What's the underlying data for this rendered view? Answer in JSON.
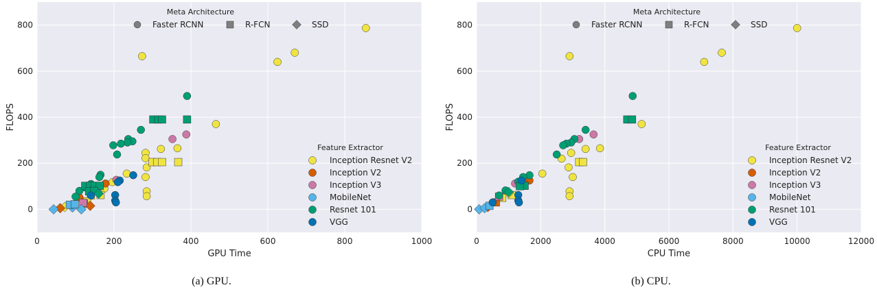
{
  "colors": {
    "Inception Resnet V2": "#f0e442",
    "Inception V2": "#d55e00",
    "Inception V3": "#cc79a7",
    "MobileNet": "#56b4e9",
    "Resnet 101": "#009e73",
    "VGG": "#0072b2",
    "meta_legend_marker": "#7f7f7f",
    "plot_bg": "#eaeaf2",
    "grid": "#ffffff"
  },
  "legend": {
    "meta_title": "Meta Architecture",
    "meta_items": [
      {
        "label": "Faster RCNN",
        "marker": "circle"
      },
      {
        "label": "R-FCN",
        "marker": "square"
      },
      {
        "label": "SSD",
        "marker": "diamond"
      }
    ],
    "feature_title": "Feature Extractor",
    "feature_items": [
      "Inception Resnet V2",
      "Inception V2",
      "Inception V3",
      "MobileNet",
      "Resnet 101",
      "VGG"
    ]
  },
  "chart_data": [
    {
      "type": "scatter",
      "caption": "(a) GPU.",
      "xlabel": "GPU Time",
      "ylabel": "FLOPS",
      "xlim": [
        0,
        1000
      ],
      "ylim": [
        -100,
        900
      ],
      "xticks": [
        0,
        200,
        400,
        600,
        800,
        1000
      ],
      "yticks": [
        0,
        200,
        400,
        600,
        800
      ],
      "grid": true,
      "legend_placement": "top-center and right",
      "points": [
        {
          "x": 855,
          "y": 787,
          "meta": "Faster RCNN",
          "fe": "Inception Resnet V2"
        },
        {
          "x": 670,
          "y": 680,
          "meta": "Faster RCNN",
          "fe": "Inception Resnet V2"
        },
        {
          "x": 625,
          "y": 640,
          "meta": "Faster RCNN",
          "fe": "Inception Resnet V2"
        },
        {
          "x": 273,
          "y": 665,
          "meta": "Faster RCNN",
          "fe": "Inception Resnet V2"
        },
        {
          "x": 465,
          "y": 370,
          "meta": "Faster RCNN",
          "fe": "Inception Resnet V2"
        },
        {
          "x": 322,
          "y": 262,
          "meta": "Faster RCNN",
          "fe": "Inception Resnet V2"
        },
        {
          "x": 365,
          "y": 265,
          "meta": "Faster RCNN",
          "fe": "Inception Resnet V2"
        },
        {
          "x": 282,
          "y": 245,
          "meta": "Faster RCNN",
          "fe": "Inception Resnet V2"
        },
        {
          "x": 282,
          "y": 222,
          "meta": "Faster RCNN",
          "fe": "Inception Resnet V2"
        },
        {
          "x": 285,
          "y": 182,
          "meta": "Faster RCNN",
          "fe": "Inception Resnet V2"
        },
        {
          "x": 282,
          "y": 140,
          "meta": "Faster RCNN",
          "fe": "Inception Resnet V2"
        },
        {
          "x": 285,
          "y": 78,
          "meta": "Faster RCNN",
          "fe": "Inception Resnet V2"
        },
        {
          "x": 285,
          "y": 57,
          "meta": "Faster RCNN",
          "fe": "Inception Resnet V2"
        },
        {
          "x": 233,
          "y": 155,
          "meta": "Faster RCNN",
          "fe": "Inception Resnet V2"
        },
        {
          "x": 196,
          "y": 118,
          "meta": "Faster RCNN",
          "fe": "Inception Resnet V2"
        },
        {
          "x": 175,
          "y": 90,
          "meta": "Faster RCNN",
          "fe": "Inception Resnet V2"
        },
        {
          "x": 300,
          "y": 205,
          "meta": "R-FCN",
          "fe": "Inception Resnet V2"
        },
        {
          "x": 312,
          "y": 205,
          "meta": "R-FCN",
          "fe": "Inception Resnet V2"
        },
        {
          "x": 325,
          "y": 205,
          "meta": "R-FCN",
          "fe": "Inception Resnet V2"
        },
        {
          "x": 367,
          "y": 205,
          "meta": "R-FCN",
          "fe": "Inception Resnet V2"
        },
        {
          "x": 140,
          "y": 60,
          "meta": "R-FCN",
          "fe": "Inception Resnet V2"
        },
        {
          "x": 165,
          "y": 62,
          "meta": "R-FCN",
          "fe": "Inception Resnet V2"
        },
        {
          "x": 130,
          "y": 35,
          "meta": "R-FCN",
          "fe": "Inception Resnet V2"
        },
        {
          "x": 72,
          "y": 10,
          "meta": "SSD",
          "fe": "Inception Resnet V2"
        },
        {
          "x": 95,
          "y": 18,
          "meta": "SSD",
          "fe": "Inception Resnet V2"
        },
        {
          "x": 178,
          "y": 112,
          "meta": "Faster RCNN",
          "fe": "Inception V2"
        },
        {
          "x": 155,
          "y": 80,
          "meta": "Faster RCNN",
          "fe": "Inception V2"
        },
        {
          "x": 110,
          "y": 52,
          "meta": "Faster RCNN",
          "fe": "Inception V2"
        },
        {
          "x": 122,
          "y": 25,
          "meta": "R-FCN",
          "fe": "Inception V2"
        },
        {
          "x": 138,
          "y": 15,
          "meta": "SSD",
          "fe": "Inception V2"
        },
        {
          "x": 60,
          "y": 5,
          "meta": "SSD",
          "fe": "Inception V2"
        },
        {
          "x": 388,
          "y": 325,
          "meta": "Faster RCNN",
          "fe": "Inception V3"
        },
        {
          "x": 352,
          "y": 305,
          "meta": "Faster RCNN",
          "fe": "Inception V3"
        },
        {
          "x": 206,
          "y": 128,
          "meta": "Faster RCNN",
          "fe": "Inception V3"
        },
        {
          "x": 120,
          "y": 28,
          "meta": "R-FCN",
          "fe": "Inception V3"
        },
        {
          "x": 115,
          "y": 0,
          "meta": "SSD",
          "fe": "MobileNet"
        },
        {
          "x": 92,
          "y": 8,
          "meta": "SSD",
          "fe": "MobileNet"
        },
        {
          "x": 43,
          "y": 0,
          "meta": "SSD",
          "fe": "MobileNet"
        },
        {
          "x": 85,
          "y": 20,
          "meta": "R-FCN",
          "fe": "MobileNet"
        },
        {
          "x": 98,
          "y": 22,
          "meta": "R-FCN",
          "fe": "MobileNet"
        },
        {
          "x": 390,
          "y": 492,
          "meta": "Faster RCNN",
          "fe": "Resnet 101"
        },
        {
          "x": 270,
          "y": 345,
          "meta": "Faster RCNN",
          "fe": "Resnet 101"
        },
        {
          "x": 237,
          "y": 305,
          "meta": "Faster RCNN",
          "fe": "Resnet 101"
        },
        {
          "x": 248,
          "y": 295,
          "meta": "Faster RCNN",
          "fe": "Resnet 101"
        },
        {
          "x": 235,
          "y": 290,
          "meta": "Faster RCNN",
          "fe": "Resnet 101"
        },
        {
          "x": 218,
          "y": 285,
          "meta": "Faster RCNN",
          "fe": "Resnet 101"
        },
        {
          "x": 198,
          "y": 278,
          "meta": "Faster RCNN",
          "fe": "Resnet 101"
        },
        {
          "x": 208,
          "y": 238,
          "meta": "Faster RCNN",
          "fe": "Resnet 101"
        },
        {
          "x": 165,
          "y": 150,
          "meta": "Faster RCNN",
          "fe": "Resnet 101"
        },
        {
          "x": 162,
          "y": 140,
          "meta": "Faster RCNN",
          "fe": "Resnet 101"
        },
        {
          "x": 140,
          "y": 110,
          "meta": "Faster RCNN",
          "fe": "Resnet 101"
        },
        {
          "x": 125,
          "y": 95,
          "meta": "Faster RCNN",
          "fe": "Resnet 101"
        },
        {
          "x": 110,
          "y": 80,
          "meta": "Faster RCNN",
          "fe": "Resnet 101"
        },
        {
          "x": 100,
          "y": 55,
          "meta": "Faster RCNN",
          "fe": "Resnet 101"
        },
        {
          "x": 302,
          "y": 390,
          "meta": "R-FCN",
          "fe": "Resnet 101"
        },
        {
          "x": 315,
          "y": 390,
          "meta": "R-FCN",
          "fe": "Resnet 101"
        },
        {
          "x": 325,
          "y": 390,
          "meta": "R-FCN",
          "fe": "Resnet 101"
        },
        {
          "x": 390,
          "y": 390,
          "meta": "R-FCN",
          "fe": "Resnet 101"
        },
        {
          "x": 125,
          "y": 102,
          "meta": "R-FCN",
          "fe": "Resnet 101"
        },
        {
          "x": 138,
          "y": 102,
          "meta": "R-FCN",
          "fe": "Resnet 101"
        },
        {
          "x": 150,
          "y": 102,
          "meta": "R-FCN",
          "fe": "Resnet 101"
        },
        {
          "x": 163,
          "y": 102,
          "meta": "R-FCN",
          "fe": "Resnet 101"
        },
        {
          "x": 135,
          "y": 78,
          "meta": "R-FCN",
          "fe": "Resnet 101"
        },
        {
          "x": 148,
          "y": 80,
          "meta": "R-FCN",
          "fe": "Resnet 101"
        },
        {
          "x": 160,
          "y": 68,
          "meta": "SSD",
          "fe": "Resnet 101"
        },
        {
          "x": 250,
          "y": 148,
          "meta": "Faster RCNN",
          "fe": "VGG"
        },
        {
          "x": 215,
          "y": 125,
          "meta": "Faster RCNN",
          "fe": "VGG"
        },
        {
          "x": 210,
          "y": 118,
          "meta": "Faster RCNN",
          "fe": "VGG"
        },
        {
          "x": 203,
          "y": 62,
          "meta": "Faster RCNN",
          "fe": "VGG"
        },
        {
          "x": 203,
          "y": 38,
          "meta": "Faster RCNN",
          "fe": "VGG"
        },
        {
          "x": 205,
          "y": 30,
          "meta": "Faster RCNN",
          "fe": "VGG"
        },
        {
          "x": 140,
          "y": 60,
          "meta": "Faster RCNN",
          "fe": "VGG"
        }
      ]
    },
    {
      "type": "scatter",
      "caption": "(b) CPU.",
      "xlabel": "CPU Time",
      "ylabel": "FLOPS",
      "xlim": [
        0,
        12000
      ],
      "ylim": [
        -100,
        900
      ],
      "xticks": [
        0,
        2000,
        4000,
        6000,
        8000,
        10000,
        12000
      ],
      "yticks": [
        0,
        200,
        400,
        600,
        800
      ],
      "grid": true,
      "legend_placement": "top-center and right",
      "points": [
        {
          "x": 10000,
          "y": 787,
          "meta": "Faster RCNN",
          "fe": "Inception Resnet V2"
        },
        {
          "x": 7650,
          "y": 680,
          "meta": "Faster RCNN",
          "fe": "Inception Resnet V2"
        },
        {
          "x": 7100,
          "y": 640,
          "meta": "Faster RCNN",
          "fe": "Inception Resnet V2"
        },
        {
          "x": 2900,
          "y": 665,
          "meta": "Faster RCNN",
          "fe": "Inception Resnet V2"
        },
        {
          "x": 5150,
          "y": 370,
          "meta": "Faster RCNN",
          "fe": "Inception Resnet V2"
        },
        {
          "x": 3400,
          "y": 262,
          "meta": "Faster RCNN",
          "fe": "Inception Resnet V2"
        },
        {
          "x": 3850,
          "y": 265,
          "meta": "Faster RCNN",
          "fe": "Inception Resnet V2"
        },
        {
          "x": 2950,
          "y": 245,
          "meta": "Faster RCNN",
          "fe": "Inception Resnet V2"
        },
        {
          "x": 2650,
          "y": 220,
          "meta": "Faster RCNN",
          "fe": "Inception Resnet V2"
        },
        {
          "x": 2870,
          "y": 182,
          "meta": "Faster RCNN",
          "fe": "Inception Resnet V2"
        },
        {
          "x": 3000,
          "y": 140,
          "meta": "Faster RCNN",
          "fe": "Inception Resnet V2"
        },
        {
          "x": 2900,
          "y": 78,
          "meta": "Faster RCNN",
          "fe": "Inception Resnet V2"
        },
        {
          "x": 2900,
          "y": 57,
          "meta": "Faster RCNN",
          "fe": "Inception Resnet V2"
        },
        {
          "x": 2050,
          "y": 155,
          "meta": "Faster RCNN",
          "fe": "Inception Resnet V2"
        },
        {
          "x": 3200,
          "y": 205,
          "meta": "R-FCN",
          "fe": "Inception Resnet V2"
        },
        {
          "x": 3320,
          "y": 205,
          "meta": "R-FCN",
          "fe": "Inception Resnet V2"
        },
        {
          "x": 1100,
          "y": 62,
          "meta": "R-FCN",
          "fe": "Inception Resnet V2"
        },
        {
          "x": 800,
          "y": 50,
          "meta": "R-FCN",
          "fe": "Inception Resnet V2"
        },
        {
          "x": 1000,
          "y": 70,
          "meta": "SSD",
          "fe": "Inception Resnet V2"
        },
        {
          "x": 1650,
          "y": 125,
          "meta": "Faster RCNN",
          "fe": "Inception V2"
        },
        {
          "x": 1500,
          "y": 112,
          "meta": "Faster RCNN",
          "fe": "Inception V2"
        },
        {
          "x": 600,
          "y": 30,
          "meta": "R-FCN",
          "fe": "Inception V2"
        },
        {
          "x": 350,
          "y": 10,
          "meta": "SSD",
          "fe": "Inception V2"
        },
        {
          "x": 3650,
          "y": 325,
          "meta": "Faster RCNN",
          "fe": "Inception V3"
        },
        {
          "x": 3200,
          "y": 305,
          "meta": "Faster RCNN",
          "fe": "Inception V3"
        },
        {
          "x": 1200,
          "y": 112,
          "meta": "Faster RCNN",
          "fe": "Inception V3"
        },
        {
          "x": 700,
          "y": 55,
          "meta": "R-FCN",
          "fe": "Inception V3"
        },
        {
          "x": 80,
          "y": 0,
          "meta": "SSD",
          "fe": "MobileNet"
        },
        {
          "x": 250,
          "y": 5,
          "meta": "SSD",
          "fe": "MobileNet"
        },
        {
          "x": 400,
          "y": 15,
          "meta": "R-FCN",
          "fe": "MobileNet"
        },
        {
          "x": 4870,
          "y": 492,
          "meta": "Faster RCNN",
          "fe": "Resnet 101"
        },
        {
          "x": 3400,
          "y": 345,
          "meta": "Faster RCNN",
          "fe": "Resnet 101"
        },
        {
          "x": 3050,
          "y": 305,
          "meta": "Faster RCNN",
          "fe": "Resnet 101"
        },
        {
          "x": 2950,
          "y": 290,
          "meta": "Faster RCNN",
          "fe": "Resnet 101"
        },
        {
          "x": 2800,
          "y": 285,
          "meta": "Faster RCNN",
          "fe": "Resnet 101"
        },
        {
          "x": 2700,
          "y": 278,
          "meta": "Faster RCNN",
          "fe": "Resnet 101"
        },
        {
          "x": 2500,
          "y": 238,
          "meta": "Faster RCNN",
          "fe": "Resnet 101"
        },
        {
          "x": 1650,
          "y": 148,
          "meta": "Faster RCNN",
          "fe": "Resnet 101"
        },
        {
          "x": 1450,
          "y": 140,
          "meta": "Faster RCNN",
          "fe": "Resnet 101"
        },
        {
          "x": 1300,
          "y": 120,
          "meta": "Faster RCNN",
          "fe": "Resnet 101"
        },
        {
          "x": 900,
          "y": 82,
          "meta": "Faster RCNN",
          "fe": "Resnet 101"
        },
        {
          "x": 700,
          "y": 60,
          "meta": "Faster RCNN",
          "fe": "Resnet 101"
        },
        {
          "x": 4700,
          "y": 390,
          "meta": "R-FCN",
          "fe": "Resnet 101"
        },
        {
          "x": 4850,
          "y": 390,
          "meta": "R-FCN",
          "fe": "Resnet 101"
        },
        {
          "x": 1500,
          "y": 102,
          "meta": "R-FCN",
          "fe": "Resnet 101"
        },
        {
          "x": 1350,
          "y": 100,
          "meta": "R-FCN",
          "fe": "Resnet 101"
        },
        {
          "x": 1000,
          "y": 75,
          "meta": "SSD",
          "fe": "Resnet 101"
        },
        {
          "x": 1400,
          "y": 125,
          "meta": "Faster RCNN",
          "fe": "VGG"
        },
        {
          "x": 1300,
          "y": 62,
          "meta": "Faster RCNN",
          "fe": "VGG"
        },
        {
          "x": 1300,
          "y": 38,
          "meta": "Faster RCNN",
          "fe": "VGG"
        },
        {
          "x": 1320,
          "y": 30,
          "meta": "Faster RCNN",
          "fe": "VGG"
        },
        {
          "x": 500,
          "y": 30,
          "meta": "Faster RCNN",
          "fe": "VGG"
        }
      ]
    }
  ]
}
